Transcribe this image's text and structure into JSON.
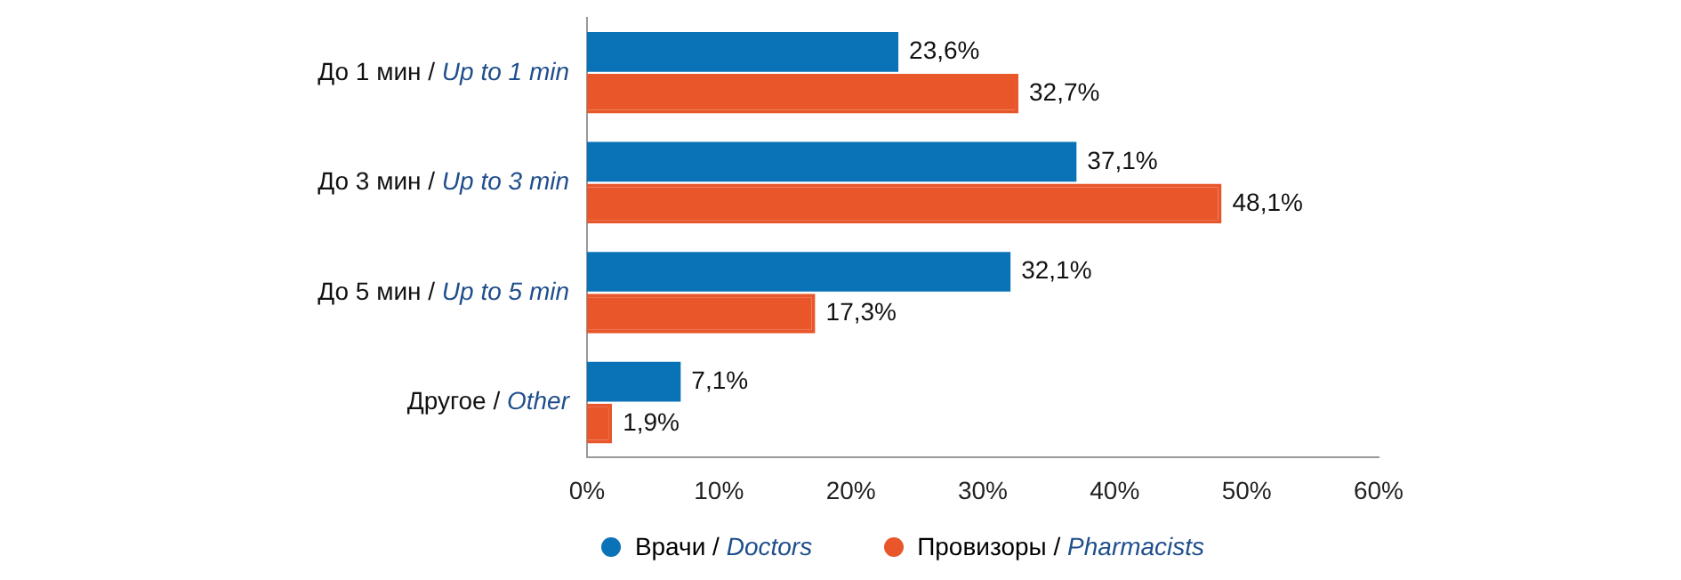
{
  "chart_data": {
    "type": "bar",
    "orientation": "horizontal",
    "categories": [
      "До 1 мин / Up to 1 min",
      "До 3 мин / Up to 3 min",
      "До 5 мин / Up to 5 min",
      "Другое / Other"
    ],
    "series": [
      {
        "name": "Врачи / Doctors",
        "color": "#0a73b8",
        "values": [
          23.6,
          37.1,
          32.1,
          7.1
        ],
        "value_labels": [
          "23,6%",
          "37,1%",
          "32,1%",
          "7,1%"
        ]
      },
      {
        "name": "Провизоры / Pharmacists",
        "color": "#e8562a",
        "values": [
          32.7,
          48.1,
          17.3,
          1.9
        ],
        "value_labels": [
          "32,7%",
          "48,1%",
          "17,3%",
          "1,9%"
        ]
      }
    ],
    "xlim": [
      0,
      60
    ],
    "xticks": [
      {
        "value": 0,
        "label": "0%"
      },
      {
        "value": 10,
        "label": "10%"
      },
      {
        "value": 20,
        "label": "20%"
      },
      {
        "value": 30,
        "label": "30%"
      },
      {
        "value": 40,
        "label": "40%"
      },
      {
        "value": 50,
        "label": "50%"
      },
      {
        "value": 60,
        "label": "60%"
      }
    ],
    "grid": false,
    "legend": "bottom"
  }
}
